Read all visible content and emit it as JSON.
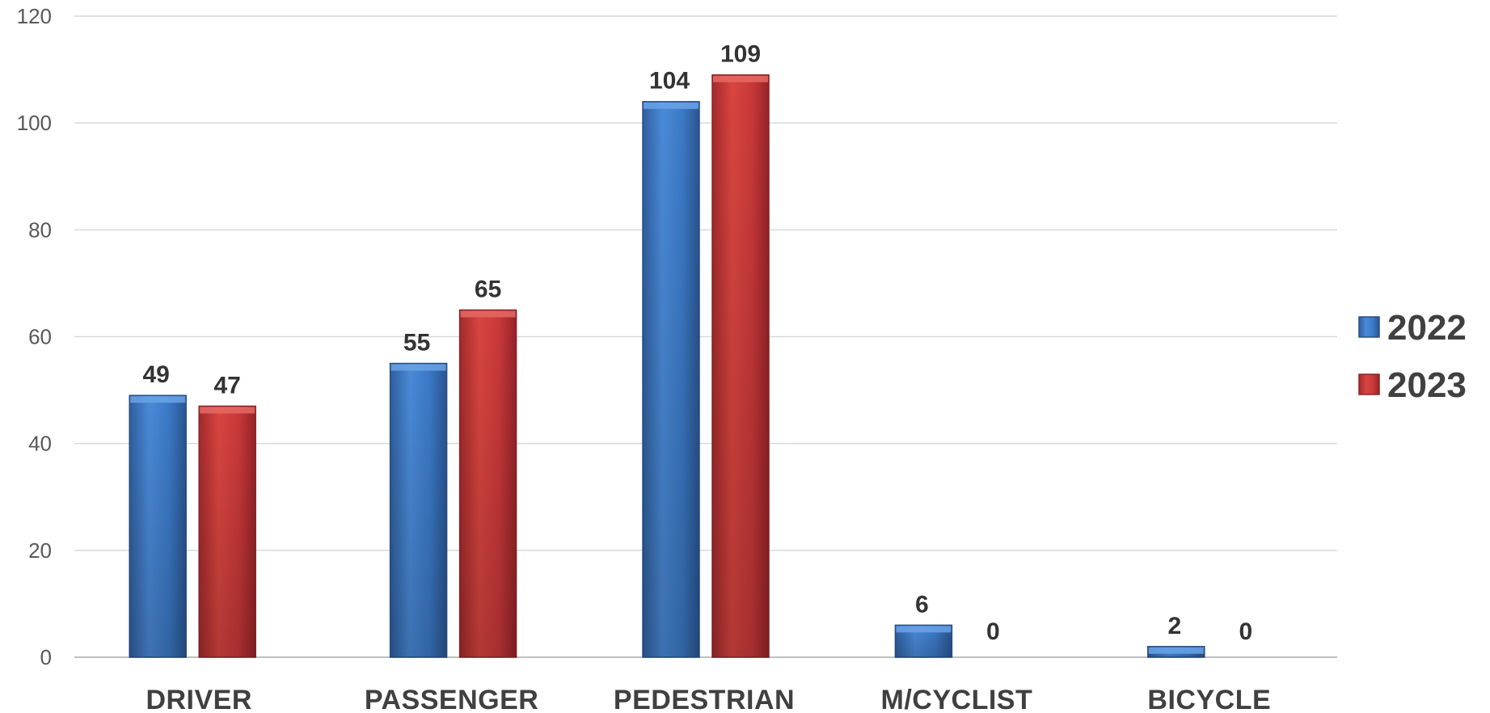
{
  "chart_data": {
    "type": "bar",
    "title": "",
    "xlabel": "",
    "ylabel": "",
    "categories": [
      "DRIVER",
      "PASSENGER",
      "PEDESTRIAN",
      "M/CYCLIST",
      "BICYCLE"
    ],
    "series": [
      {
        "name": "2022",
        "values": [
          49,
          55,
          104,
          6,
          2
        ],
        "color": "#3a78c9"
      },
      {
        "name": "2023",
        "values": [
          47,
          65,
          109,
          0,
          0
        ],
        "color": "#c8363a"
      }
    ],
    "ylim": [
      0,
      120
    ],
    "yticks": [
      0,
      20,
      40,
      60,
      80,
      100,
      120
    ],
    "grid": true,
    "legend_position": "right",
    "data_labels": true
  }
}
